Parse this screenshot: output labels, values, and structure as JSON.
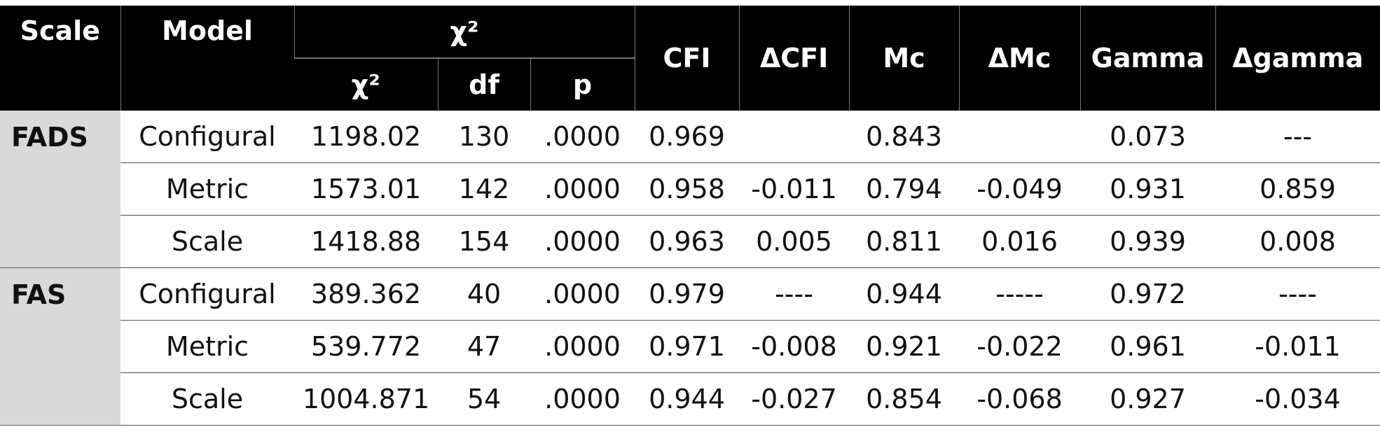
{
  "headers": {
    "scale": "Scale",
    "model": "Model",
    "chi_group": "χ²",
    "chi": "χ²",
    "df": "df",
    "p": "p",
    "cfi": "CFI",
    "dcfi": "ΔCFI",
    "mc": "Mc",
    "dmc": "ΔMc",
    "gamma": "Gamma",
    "dgamma": "Δgamma"
  },
  "groups": [
    {
      "scale": "FADS",
      "rows": [
        {
          "model": "Configural",
          "chi": "1198.02",
          "df": "130",
          "p": ".0000",
          "cfi": "0.969",
          "dcfi": "",
          "mc": "0.843",
          "dmc": "",
          "gamma": "0.073",
          "dgamma": "---"
        },
        {
          "model": "Metric",
          "chi": "1573.01",
          "df": "142",
          "p": ".0000",
          "cfi": "0.958",
          "dcfi": "-0.011",
          "mc": "0.794",
          "dmc": "-0.049",
          "gamma": "0.931",
          "dgamma": "0.859"
        },
        {
          "model": "Scale",
          "chi": "1418.88",
          "df": "154",
          "p": ".0000",
          "cfi": "0.963",
          "dcfi": "0.005",
          "mc": "0.811",
          "dmc": "0.016",
          "gamma": "0.939",
          "dgamma": "0.008"
        }
      ]
    },
    {
      "scale": "FAS",
      "rows": [
        {
          "model": "Configural",
          "chi": "389.362",
          "df": "40",
          "p": ".0000",
          "cfi": "0.979",
          "dcfi": "----",
          "mc": "0.944",
          "dmc": "-----",
          "gamma": "0.972",
          "dgamma": "----"
        },
        {
          "model": "Metric",
          "chi": "539.772",
          "df": "47",
          "p": ".0000",
          "cfi": "0.971",
          "dcfi": "-0.008",
          "mc": "0.921",
          "dmc": "-0.022",
          "gamma": "0.961",
          "dgamma": "-0.011"
        },
        {
          "model": "Scale",
          "chi": "1004.871",
          "df": "54",
          "p": ".0000",
          "cfi": "0.944",
          "dcfi": "-0.027",
          "mc": "0.854",
          "dmc": "-0.068",
          "gamma": "0.927",
          "dgamma": "-0.034"
        }
      ]
    }
  ]
}
